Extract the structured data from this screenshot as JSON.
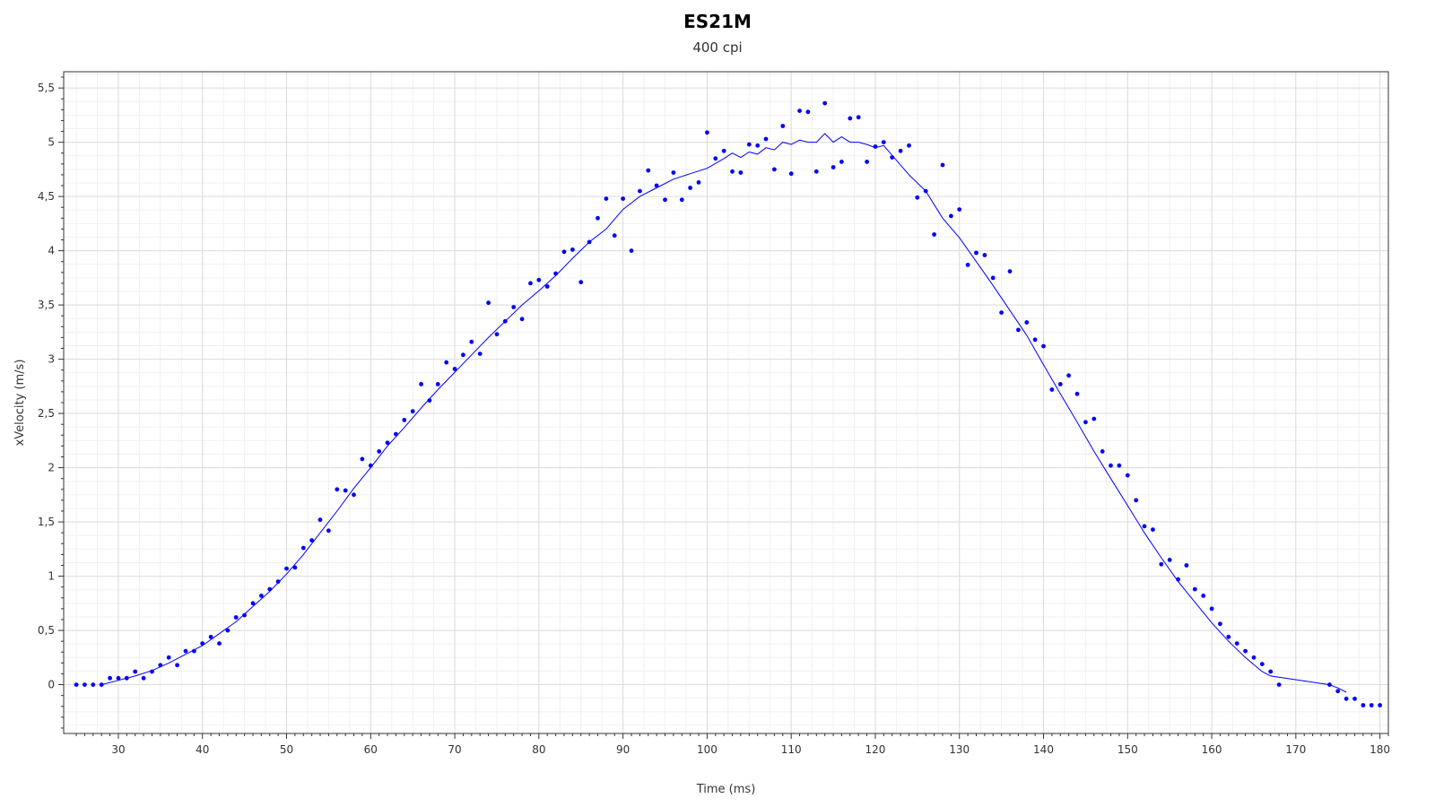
{
  "chart_data": {
    "type": "scatter",
    "title": "ES21M",
    "subtitle": "400 cpi",
    "xlabel": "Time (ms)",
    "ylabel": "xVelocity (m/s)",
    "xlim": [
      23.5,
      181
    ],
    "ylim": [
      -0.45,
      5.65
    ],
    "xticks": [
      30,
      40,
      50,
      60,
      70,
      80,
      90,
      100,
      110,
      120,
      130,
      140,
      150,
      160,
      170,
      180
    ],
    "yticks": [
      0,
      0.5,
      1,
      1.5,
      2,
      2.5,
      3,
      3.5,
      4,
      4.5,
      5,
      5.5
    ],
    "ytick_labels": [
      "0",
      "0,5",
      "1",
      "1,5",
      "2",
      "2,5",
      "3",
      "3,5",
      "4",
      "4,5",
      "5",
      "5,5"
    ],
    "grid": true,
    "color": "#0000ff",
    "series": [
      {
        "style": "points",
        "x": [
          25,
          26,
          27,
          28,
          29,
          30,
          31,
          32,
          33,
          34,
          35,
          36,
          37,
          38,
          39,
          40,
          41,
          42,
          43,
          44,
          45,
          46,
          47,
          48,
          49,
          50,
          51,
          52,
          53,
          54,
          55,
          56,
          57,
          58,
          59,
          60,
          61,
          62,
          63,
          64,
          65,
          66,
          67,
          68,
          69,
          70,
          71,
          72,
          73,
          74,
          75,
          76,
          77,
          78,
          79,
          80,
          81,
          82,
          83,
          84,
          85,
          86,
          87,
          88,
          89,
          90,
          91,
          92,
          93,
          94,
          95,
          96,
          97,
          98,
          99,
          100,
          101,
          102,
          103,
          104,
          105,
          106,
          107,
          108,
          109,
          110,
          111,
          112,
          113,
          114,
          115,
          116,
          117,
          118,
          119,
          120,
          121,
          122,
          123,
          124,
          125,
          126,
          127,
          128,
          129,
          130,
          131,
          132,
          133,
          134,
          135,
          136,
          137,
          138,
          139,
          140,
          141,
          142,
          143,
          144,
          145,
          146,
          147,
          148,
          149,
          150,
          151,
          152,
          153,
          154,
          155,
          156,
          157,
          158,
          159,
          160,
          161,
          162,
          163,
          164,
          165,
          166,
          167,
          168,
          174,
          175,
          176,
          177,
          178,
          179,
          180
        ],
        "y": [
          0,
          0,
          0,
          0,
          0.06,
          0.06,
          0.06,
          0.12,
          0.06,
          0.12,
          0.18,
          0.25,
          0.18,
          0.31,
          0.31,
          0.38,
          0.44,
          0.38,
          0.5,
          0.62,
          0.64,
          0.75,
          0.82,
          0.88,
          0.95,
          1.07,
          1.08,
          1.26,
          1.33,
          1.52,
          1.42,
          1.8,
          1.79,
          1.75,
          2.08,
          2.02,
          2.15,
          2.23,
          2.31,
          2.44,
          2.52,
          2.77,
          2.62,
          2.77,
          2.97,
          2.91,
          3.04,
          3.16,
          3.05,
          3.52,
          3.23,
          3.35,
          3.48,
          3.37,
          3.7,
          3.73,
          3.67,
          3.79,
          3.99,
          4.01,
          3.71,
          4.08,
          4.3,
          4.48,
          4.14,
          4.48,
          4.0,
          4.55,
          4.74,
          4.6,
          4.47,
          4.72,
          4.47,
          4.58,
          4.63,
          5.09,
          4.85,
          4.92,
          4.73,
          4.72,
          4.98,
          4.97,
          5.03,
          4.75,
          5.15,
          4.71,
          5.29,
          5.28,
          4.73,
          5.36,
          4.77,
          4.82,
          5.22,
          5.23,
          4.82,
          4.96,
          5.0,
          4.86,
          4.92,
          4.97,
          4.49,
          4.55,
          4.15,
          4.79,
          4.32,
          4.38,
          3.87,
          3.98,
          3.96,
          3.75,
          3.43,
          3.81,
          3.27,
          3.34,
          3.18,
          3.12,
          2.72,
          2.77,
          2.85,
          2.68,
          2.42,
          2.45,
          2.15,
          2.02,
          2.02,
          1.93,
          1.7,
          1.46,
          1.43,
          1.11,
          1.15,
          0.97,
          1.1,
          0.88,
          0.82,
          0.7,
          0.56,
          0.44,
          0.38,
          0.31,
          0.25,
          0.19,
          0.12,
          0.0,
          0.0,
          -0.06,
          -0.13,
          -0.13,
          -0.19,
          -0.19,
          -0.19
        ]
      },
      {
        "style": "line",
        "x": [
          28,
          30,
          32,
          34,
          36,
          38,
          40,
          42,
          44,
          46,
          48,
          50,
          52,
          54,
          56,
          58,
          60,
          62,
          64,
          66,
          68,
          70,
          72,
          74,
          76,
          78,
          80,
          82,
          84,
          86,
          88,
          90,
          92,
          94,
          96,
          98,
          100,
          102,
          103,
          104,
          105,
          106,
          107,
          108,
          109,
          110,
          111,
          112,
          113,
          114,
          115,
          116,
          117,
          118,
          119,
          120,
          121,
          122,
          124,
          126,
          128,
          130,
          132,
          134,
          136,
          138,
          140,
          142,
          144,
          146,
          148,
          150,
          152,
          154,
          156,
          158,
          160,
          162,
          164,
          166,
          167,
          174,
          175,
          176
        ],
        "y": [
          0,
          0.04,
          0.08,
          0.13,
          0.2,
          0.28,
          0.36,
          0.47,
          0.58,
          0.72,
          0.86,
          1.02,
          1.2,
          1.4,
          1.6,
          1.81,
          2.0,
          2.2,
          2.37,
          2.55,
          2.72,
          2.88,
          3.04,
          3.2,
          3.35,
          3.5,
          3.63,
          3.77,
          3.93,
          4.08,
          4.2,
          4.38,
          4.5,
          4.58,
          4.66,
          4.71,
          4.76,
          4.85,
          4.9,
          4.86,
          4.91,
          4.89,
          4.95,
          4.93,
          5.0,
          4.98,
          5.02,
          5.0,
          5.0,
          5.08,
          5.0,
          5.05,
          5.0,
          5.0,
          4.98,
          4.95,
          4.97,
          4.88,
          4.7,
          4.55,
          4.3,
          4.12,
          3.9,
          3.68,
          3.45,
          3.22,
          2.95,
          2.68,
          2.42,
          2.15,
          1.9,
          1.65,
          1.4,
          1.17,
          0.95,
          0.76,
          0.57,
          0.4,
          0.25,
          0.12,
          0.08,
          0.0,
          -0.03,
          -0.07
        ]
      }
    ]
  }
}
